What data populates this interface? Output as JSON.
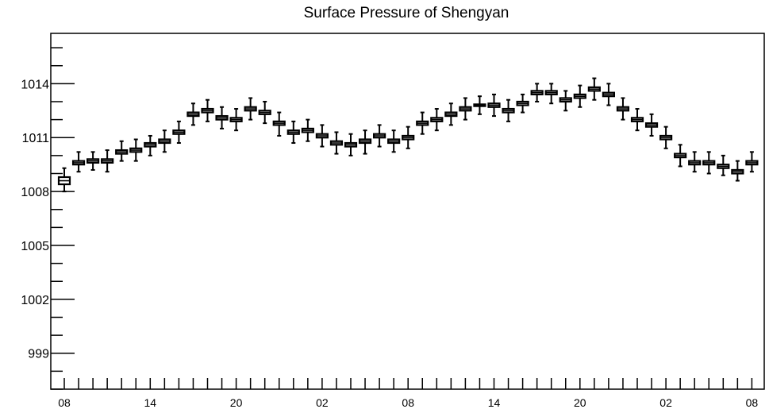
{
  "chart_data": {
    "type": "box",
    "title": "Surface Pressure of Shengyan",
    "xlabel": "",
    "ylabel": "",
    "ylim": [
      997,
      1016.8
    ],
    "yticks": [
      999,
      1002,
      1005,
      1008,
      1011,
      1014
    ],
    "x_tick_labels": [
      "08",
      "14",
      "20",
      "02",
      "08",
      "14",
      "20",
      "02",
      "08"
    ],
    "grid": false,
    "series": [
      {
        "time_index": [
          0,
          1,
          2,
          3,
          4,
          5,
          6,
          7,
          8,
          9,
          10,
          11,
          12,
          13,
          14,
          15,
          16,
          17,
          18,
          19,
          20,
          21,
          22,
          23,
          24,
          25,
          26,
          27,
          28,
          29,
          30,
          31,
          32,
          33,
          34,
          35,
          36,
          37,
          38,
          39,
          40,
          41,
          42,
          43,
          44,
          45,
          46,
          47,
          48
        ],
        "median": [
          1008.6,
          1009.6,
          1009.7,
          1009.7,
          1010.2,
          1010.3,
          1010.6,
          1010.8,
          1011.3,
          1012.3,
          1012.5,
          1012.1,
          1012.0,
          1012.6,
          1012.4,
          1011.8,
          1011.3,
          1011.4,
          1011.1,
          1010.7,
          1010.6,
          1010.8,
          1011.1,
          1010.8,
          1011.0,
          1011.8,
          1012.0,
          1012.3,
          1012.6,
          1012.8,
          1012.8,
          1012.5,
          1012.9,
          1013.5,
          1013.5,
          1013.1,
          1013.3,
          1013.7,
          1013.4,
          1012.6,
          1012.0,
          1011.7,
          1011.0,
          1010.0,
          1009.6,
          1009.6,
          1009.4,
          1009.1,
          1009.6
        ],
        "q1": [
          1008.4,
          1009.5,
          1009.6,
          1009.6,
          1010.1,
          1010.2,
          1010.5,
          1010.7,
          1011.2,
          1012.2,
          1012.4,
          1012.0,
          1011.9,
          1012.5,
          1012.3,
          1011.7,
          1011.2,
          1011.3,
          1011.0,
          1010.6,
          1010.5,
          1010.7,
          1011.0,
          1010.7,
          1010.9,
          1011.7,
          1011.9,
          1012.2,
          1012.5,
          1012.75,
          1012.7,
          1012.4,
          1012.8,
          1013.4,
          1013.4,
          1013.0,
          1013.2,
          1013.6,
          1013.3,
          1012.5,
          1011.9,
          1011.6,
          1010.9,
          1009.9,
          1009.5,
          1009.5,
          1009.3,
          1009.0,
          1009.5
        ],
        "q3": [
          1008.8,
          1009.7,
          1009.8,
          1009.8,
          1010.3,
          1010.4,
          1010.7,
          1010.9,
          1011.4,
          1012.4,
          1012.6,
          1012.2,
          1012.1,
          1012.7,
          1012.5,
          1011.9,
          1011.4,
          1011.5,
          1011.2,
          1010.8,
          1010.7,
          1010.9,
          1011.2,
          1010.9,
          1011.1,
          1011.9,
          1012.1,
          1012.4,
          1012.7,
          1012.85,
          1012.9,
          1012.6,
          1013.0,
          1013.6,
          1013.6,
          1013.2,
          1013.4,
          1013.8,
          1013.5,
          1012.7,
          1012.1,
          1011.8,
          1011.1,
          1010.1,
          1009.7,
          1009.7,
          1009.5,
          1009.2,
          1009.7
        ],
        "min": [
          1008.0,
          1009.1,
          1009.2,
          1009.1,
          1009.7,
          1009.7,
          1010.0,
          1010.2,
          1010.7,
          1011.7,
          1011.9,
          1011.5,
          1011.4,
          1012.0,
          1011.8,
          1011.1,
          1010.7,
          1010.8,
          1010.5,
          1010.1,
          1010.0,
          1010.1,
          1010.5,
          1010.2,
          1010.4,
          1011.2,
          1011.4,
          1011.7,
          1012.0,
          1012.3,
          1012.2,
          1011.9,
          1012.4,
          1013.0,
          1012.9,
          1012.5,
          1012.7,
          1013.1,
          1012.8,
          1012.0,
          1011.4,
          1011.1,
          1010.4,
          1009.4,
          1009.1,
          1009.0,
          1008.9,
          1008.6,
          1009.1
        ],
        "max": [
          1009.3,
          1010.2,
          1010.2,
          1010.3,
          1010.8,
          1010.9,
          1011.1,
          1011.4,
          1011.9,
          1012.9,
          1013.1,
          1012.7,
          1012.6,
          1013.2,
          1013.0,
          1012.4,
          1011.9,
          1012.0,
          1011.7,
          1011.3,
          1011.2,
          1011.4,
          1011.7,
          1011.4,
          1011.6,
          1012.4,
          1012.6,
          1012.9,
          1013.2,
          1013.3,
          1013.4,
          1013.1,
          1013.4,
          1014.0,
          1014.0,
          1013.6,
          1013.9,
          1014.3,
          1014.0,
          1013.2,
          1012.6,
          1012.3,
          1011.6,
          1010.6,
          1010.2,
          1010.2,
          1010.0,
          1009.7,
          1010.2
        ]
      }
    ]
  }
}
